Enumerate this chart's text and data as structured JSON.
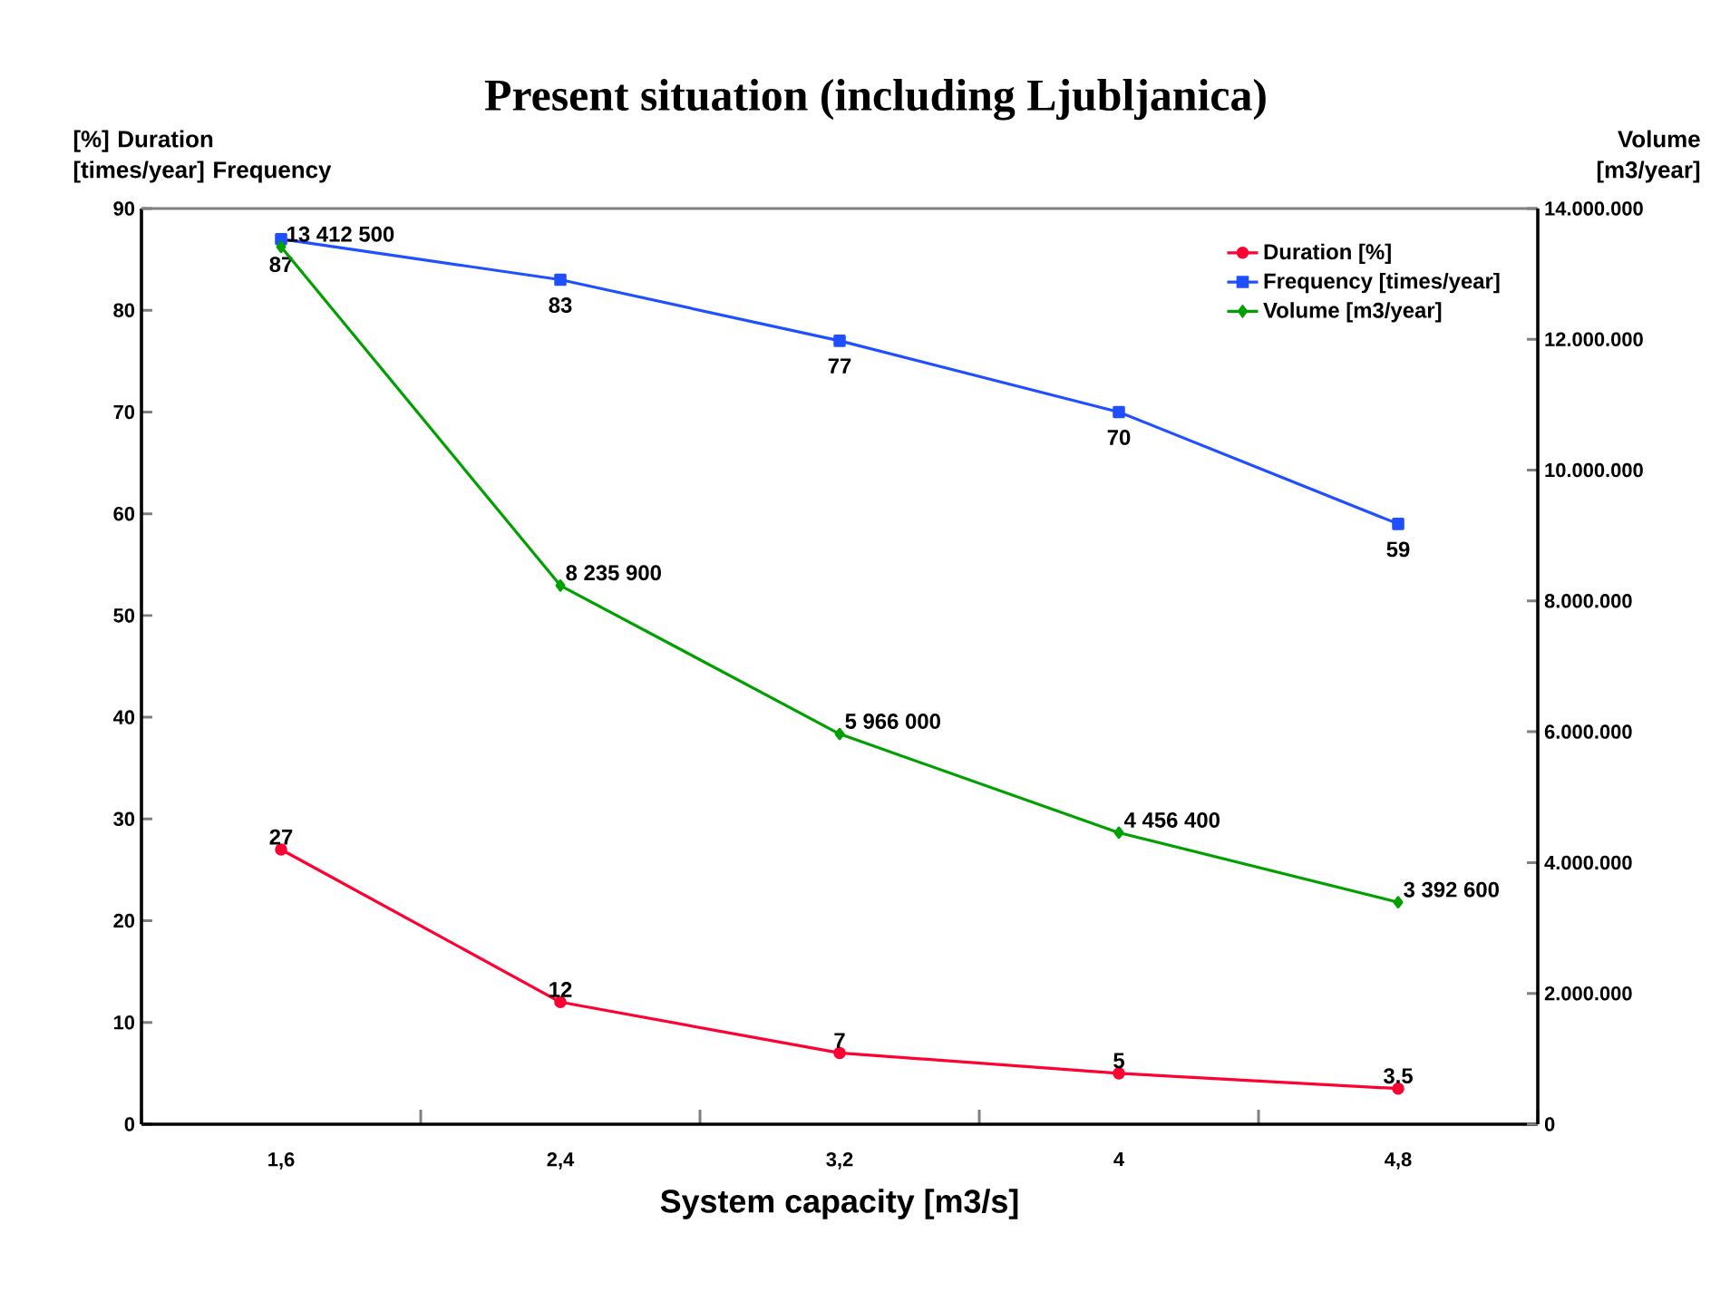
{
  "chart_data": {
    "type": "line",
    "title": "Present situation (including Ljubljanica)",
    "xlabel": "System capacity [m3/s]",
    "ylabel": "[%] Duration [times/year] Frequency",
    "y2label": "Volume [m3/year]",
    "categories": [
      "1,6",
      "2,4",
      "3,2",
      "4",
      "4,8"
    ],
    "series": [
      {
        "name": "Duration [%]",
        "color": "#ff0033",
        "marker": "circle",
        "values": [
          27,
          12,
          7,
          5,
          3.5
        ],
        "value_labels": [
          "27",
          "12",
          "7",
          "5",
          "3.5"
        ]
      },
      {
        "name": "Frequency [times/year]",
        "color": "#1f4fff",
        "marker": "square",
        "values": [
          87,
          83,
          77,
          70,
          59
        ],
        "value_labels": [
          "87",
          "83",
          "77",
          "70",
          "59"
        ]
      },
      {
        "name": "Volume [m3/year]",
        "color": "#00a000",
        "marker": "diamond",
        "axis": "y2",
        "values": [
          13412500,
          8235900,
          5966000,
          4456400,
          3392600
        ],
        "value_labels": [
          "13 412 500",
          "8 235 900",
          "5 966 000",
          "4 456 400",
          "3 392 600"
        ]
      }
    ],
    "ylim": [
      0,
      90
    ],
    "yticks": [
      0,
      10,
      20,
      30,
      40,
      50,
      60,
      70,
      80,
      90
    ],
    "y2lim": [
      0,
      14000000
    ],
    "y2ticks": [
      {
        "value": 0,
        "label": "0"
      },
      {
        "value": 2000000,
        "label": "2.000.000"
      },
      {
        "value": 4000000,
        "label": "4.000.000"
      },
      {
        "value": 6000000,
        "label": "6.000.000"
      },
      {
        "value": 8000000,
        "label": "8.000.000"
      },
      {
        "value": 10000000,
        "label": "10.000.000"
      },
      {
        "value": 12000000,
        "label": "12.000.000"
      },
      {
        "value": 14000000,
        "label": "14.000.000"
      }
    ],
    "legend": "top right"
  }
}
